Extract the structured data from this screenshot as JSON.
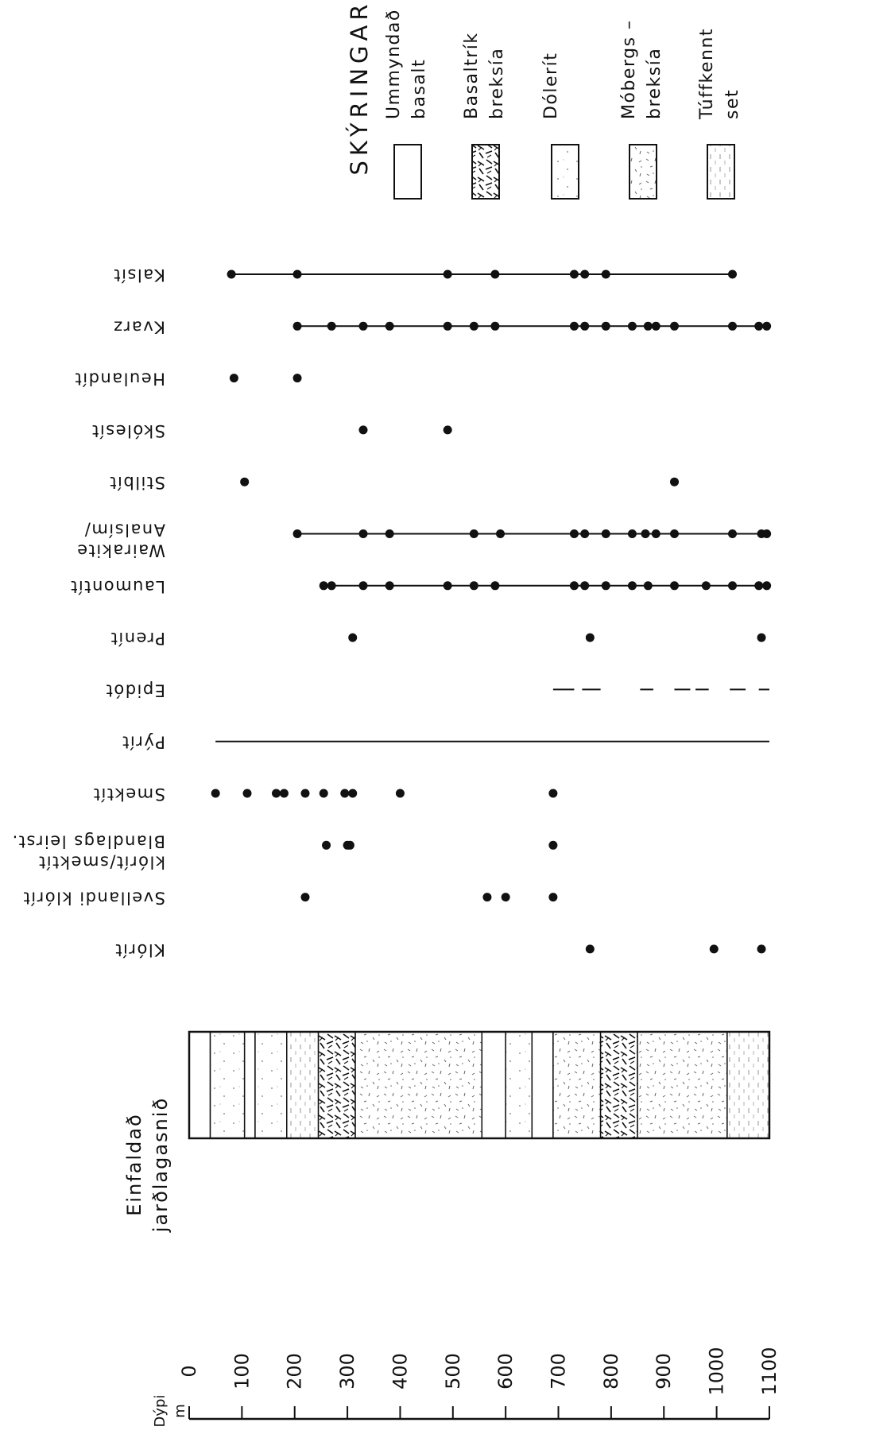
{
  "legend": {
    "title": "SKÝRINGAR",
    "items": [
      {
        "line1": "Ummyndað",
        "line2": "basalt",
        "pattern": "plain"
      },
      {
        "line1": "Basaltrík",
        "line2": "breksía",
        "pattern": "breccia"
      },
      {
        "line1": "Dólerít",
        "line2": "",
        "pattern": "dolerite"
      },
      {
        "line1": "Móbergs –",
        "line2": "breksía",
        "pattern": "speckle"
      },
      {
        "line1": "Túffkennt",
        "line2": "set",
        "pattern": "tuff"
      }
    ]
  },
  "depth_axis": {
    "label": "Dýpi",
    "unit": "m",
    "ticks": [
      "0",
      "100",
      "200",
      "300",
      "400",
      "500",
      "600",
      "700",
      "800",
      "900",
      "1000",
      "1100"
    ],
    "range": [
      0,
      1100
    ]
  },
  "section": {
    "line1": "Einfaldað",
    "line2": "jarðlagasnið",
    "layers": [
      {
        "from": 0,
        "to": 40,
        "pattern": "plain"
      },
      {
        "from": 40,
        "to": 105,
        "pattern": "dolerite"
      },
      {
        "from": 105,
        "to": 125,
        "pattern": "plain"
      },
      {
        "from": 125,
        "to": 185,
        "pattern": "dolerite"
      },
      {
        "from": 185,
        "to": 245,
        "pattern": "tuff"
      },
      {
        "from": 245,
        "to": 315,
        "pattern": "breccia"
      },
      {
        "from": 315,
        "to": 555,
        "pattern": "speckle"
      },
      {
        "from": 555,
        "to": 600,
        "pattern": "plain"
      },
      {
        "from": 600,
        "to": 650,
        "pattern": "dolerite"
      },
      {
        "from": 650,
        "to": 690,
        "pattern": "plain"
      },
      {
        "from": 690,
        "to": 780,
        "pattern": "speckle"
      },
      {
        "from": 780,
        "to": 850,
        "pattern": "breccia"
      },
      {
        "from": 850,
        "to": 1020,
        "pattern": "speckle"
      },
      {
        "from": 1020,
        "to": 1100,
        "pattern": "tuff"
      }
    ]
  },
  "minerals": [
    {
      "name": "Kalsít",
      "line": [
        80,
        1035
      ],
      "points": [
        80,
        205,
        490,
        580,
        730,
        750,
        790,
        1030
      ]
    },
    {
      "name": "Kvarz",
      "line": [
        205,
        1100
      ],
      "points": [
        205,
        270,
        330,
        380,
        490,
        540,
        580,
        730,
        750,
        790,
        840,
        870,
        885,
        920,
        1030,
        1080,
        1095
      ]
    },
    {
      "name": "Heulandít",
      "points": [
        85,
        205
      ]
    },
    {
      "name": "Skólesít",
      "points": [
        330,
        490
      ]
    },
    {
      "name": "Stilbít",
      "points": [
        105,
        920
      ]
    },
    {
      "name": "Analsím/",
      "name2": "Wairakite",
      "line": [
        205,
        1100
      ],
      "points": [
        205,
        330,
        380,
        540,
        590,
        730,
        750,
        790,
        840,
        865,
        885,
        920,
        1030,
        1085,
        1095
      ]
    },
    {
      "name": "Laumontít",
      "line": [
        255,
        1100
      ],
      "points": [
        255,
        270,
        330,
        380,
        490,
        540,
        580,
        730,
        750,
        790,
        840,
        870,
        920,
        980,
        1030,
        1080,
        1095
      ]
    },
    {
      "name": "Prenít",
      "points": [
        310,
        760,
        1085
      ]
    },
    {
      "name": "Epidót",
      "dashes": [
        [
          690,
          730
        ],
        [
          745,
          780
        ],
        [
          855,
          880
        ],
        [
          920,
          950
        ],
        [
          960,
          985
        ],
        [
          1025,
          1055
        ],
        [
          1080,
          1100
        ]
      ]
    },
    {
      "name": "Pýrít",
      "line": [
        50,
        1100
      ]
    },
    {
      "name": "Smektít",
      "points": [
        50,
        110,
        165,
        180,
        220,
        255,
        295,
        310,
        400,
        690
      ]
    },
    {
      "name": "Blandlags leirst.",
      "name2": "klórít/smektít",
      "points": [
        260,
        300,
        305,
        690
      ]
    },
    {
      "name": "Svellandi klórít",
      "points": [
        220,
        565,
        600,
        690
      ]
    },
    {
      "name": "Klórít",
      "points": [
        760,
        995,
        1085
      ]
    }
  ]
}
